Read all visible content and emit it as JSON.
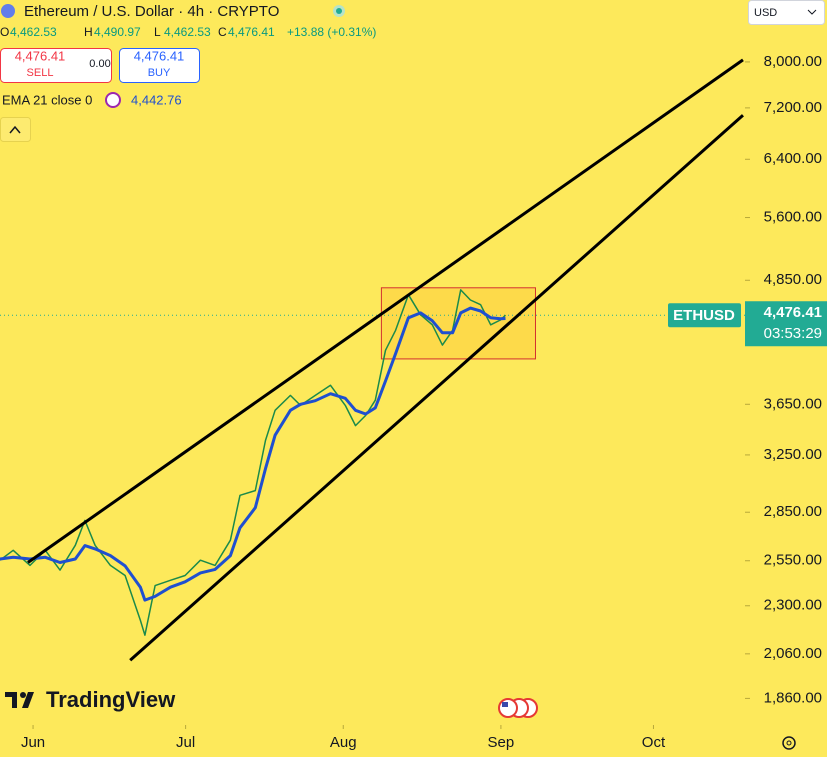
{
  "ui": {
    "title": "Ethereum / U.S. Dollar · 4h · CRYPTO",
    "ohlc": [
      {
        "k": "O",
        "v": "4,462.53"
      },
      {
        "k": "H",
        "v": "4,490.97"
      },
      {
        "k": "L",
        "v": "4,462.53"
      },
      {
        "k": "C",
        "v": "4,476.41"
      }
    ],
    "change": "+13.88 (+0.31%)",
    "sell": {
      "price": "4,476.41",
      "label": "SELL"
    },
    "spread": "0.00",
    "buy": {
      "price": "4,476.41",
      "label": "BUY"
    },
    "indicator": "EMA 21 close 0",
    "indicator_value": "4,442.76",
    "currency": "USD",
    "symbol_tag": "ETHUSD",
    "countdown": "03:53:29",
    "logo": "TradingView"
  },
  "chart_data": {
    "type": "line",
    "log_scale": true,
    "xlim": [
      145.5,
      292
    ],
    "xticks": [
      {
        "value": 152,
        "label": "Jun"
      },
      {
        "value": 182,
        "label": "Jul"
      },
      {
        "value": 213,
        "label": "Aug"
      },
      {
        "value": 244,
        "label": "Sep"
      },
      {
        "value": 274,
        "label": "Oct"
      }
    ],
    "ylim": [
      1750,
      9220
    ],
    "yticks": [
      {
        "value": 1860,
        "label": "1,860.00"
      },
      {
        "value": 2060,
        "label": "2,060.00"
      },
      {
        "value": 2300,
        "label": "2,300.00"
      },
      {
        "value": 2550,
        "label": "2,550.00"
      },
      {
        "value": 2850,
        "label": "2,850.00"
      },
      {
        "value": 3250,
        "label": "3,250.00"
      },
      {
        "value": 3650,
        "label": "3,650.00"
      },
      {
        "value": 4850,
        "label": "4,850.00"
      },
      {
        "value": 5600,
        "label": "5,600.00"
      },
      {
        "value": 6400,
        "label": "6,400.00"
      },
      {
        "value": 7200,
        "label": "7,200.00"
      },
      {
        "value": 8000,
        "label": "8,000.00"
      }
    ],
    "x": [
      145.5,
      148.1,
      151.4,
      154.4,
      157.3,
      160.3,
      162.2,
      164.2,
      167.2,
      170.1,
      173.1,
      174.0,
      176.0,
      179.0,
      181.9,
      184.9,
      187.8,
      190.8,
      192.7,
      195.7,
      197.7,
      199.6,
      202.6,
      204.6,
      207.5,
      210.5,
      213.4,
      215.4,
      217.4,
      219.3,
      221.3,
      223.3,
      225.8,
      228.2,
      230.5,
      232.5,
      234.5,
      236.1,
      238.0,
      240.0,
      242.0,
      243.9,
      244.9
    ],
    "series": [
      {
        "color": "#1b8a4a",
        "values": [
          2553,
          2612,
          2523,
          2612,
          2496,
          2642,
          2797,
          2642,
          2523,
          2465,
          2224,
          2150,
          2409,
          2438,
          2465,
          2553,
          2523,
          2673,
          2963,
          2995,
          3360,
          3600,
          3725,
          3641,
          3725,
          3812,
          3641,
          3476,
          3557,
          3684,
          4131,
          4325,
          4692,
          4481,
          4379,
          4180,
          4325,
          4744,
          4636,
          4586,
          4379,
          4428,
          4476.41
        ]
      },
      {
        "color": "#1f4fd0",
        "values": [
          2560,
          2570,
          2560,
          2570,
          2540,
          2560,
          2640,
          2620,
          2580,
          2520,
          2400,
          2330,
          2350,
          2400,
          2430,
          2480,
          2500,
          2580,
          2750,
          2880,
          3150,
          3400,
          3600,
          3650,
          3680,
          3740,
          3700,
          3600,
          3570,
          3620,
          3850,
          4100,
          4450,
          4500,
          4420,
          4300,
          4300,
          4500,
          4550,
          4520,
          4450,
          4440,
          4442.76
        ]
      }
    ],
    "last_price": {
      "value": 4476.41,
      "label": "4,476.41"
    },
    "trend_lines": [
      {
        "x": [
          151,
          291.6
        ],
        "values": [
          2540,
          8037
        ]
      },
      {
        "x": [
          171.1,
          291.6
        ],
        "values": [
          2030,
          7080
        ]
      }
    ],
    "box": {
      "x": [
        220.5,
        250.8
      ],
      "values": [
        4767,
        4050
      ],
      "color": "#d32f2f"
    }
  }
}
